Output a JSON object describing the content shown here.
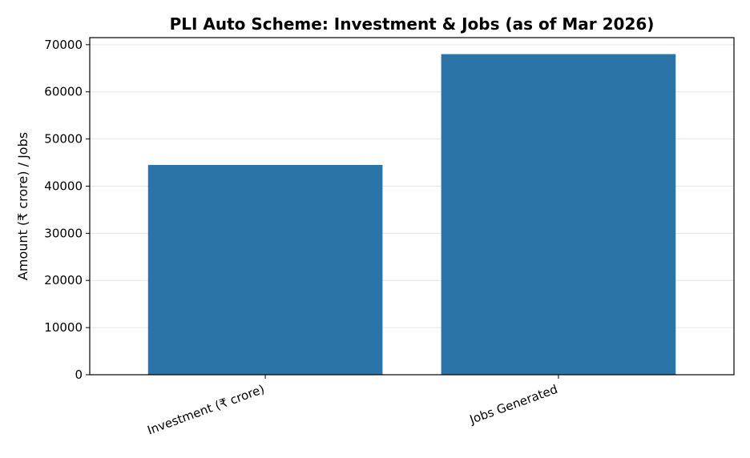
{
  "chart_data": {
    "type": "bar",
    "title": "PLI Auto Scheme: Investment & Jobs (as of Mar 2026)",
    "xlabel": "",
    "ylabel": "Amount (₹ crore) / Jobs",
    "categories": [
      "Investment (₹ crore)",
      "Jobs Generated"
    ],
    "values": [
      44500,
      68000
    ],
    "ylim": [
      0,
      71500
    ],
    "yticks": [
      0,
      10000,
      20000,
      30000,
      40000,
      50000,
      60000,
      70000
    ],
    "grid": "y",
    "bar_color": "#2a74a8",
    "legend": "none"
  }
}
